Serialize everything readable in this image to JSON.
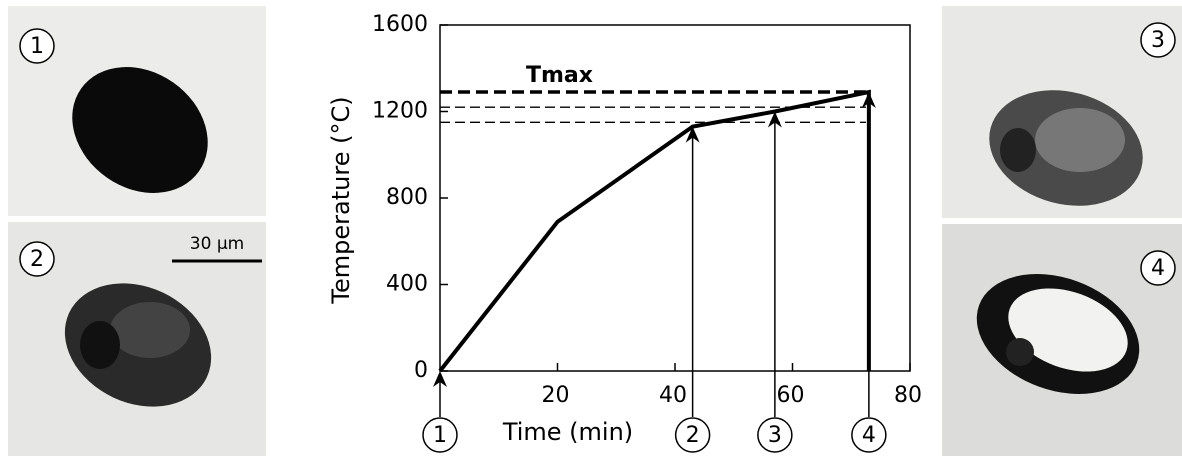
{
  "chart_data": {
    "type": "line",
    "x_label": "Time (min)",
    "y_label": "Temperature (°C)",
    "x": [
      0,
      20,
      43,
      57,
      73,
      73
    ],
    "values": [
      0,
      690,
      1130,
      1200,
      1290,
      0
    ],
    "color": "#000000",
    "xlim": [
      0,
      80
    ],
    "xticks": [
      20,
      40,
      60,
      80
    ],
    "ylim": [
      0,
      1600
    ],
    "yticks": [
      0,
      400,
      800,
      1200,
      1600
    ],
    "tmax_label": "Tmax",
    "reference_lines": [
      1290,
      1220,
      1150
    ],
    "markers": [
      {
        "x": 0,
        "label": "1"
      },
      {
        "x": 43,
        "label": "2"
      },
      {
        "x": 57,
        "label": "3"
      },
      {
        "x": 73,
        "label": "4"
      }
    ]
  },
  "panels": [
    {
      "label": "1"
    },
    {
      "label": "2"
    },
    {
      "label": "3"
    },
    {
      "label": "4"
    }
  ],
  "scale_bar": "30 µm"
}
